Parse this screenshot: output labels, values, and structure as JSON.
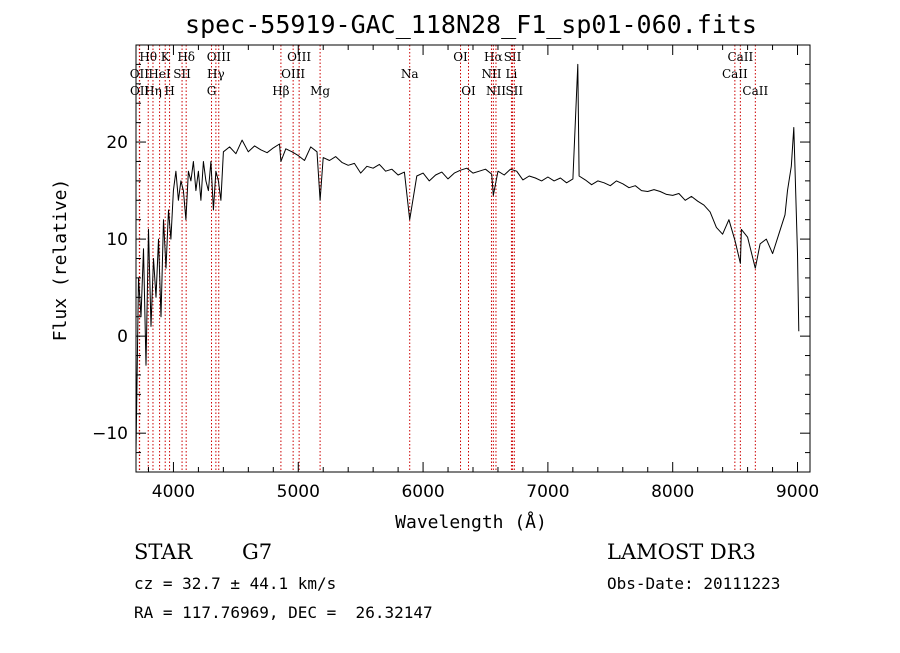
{
  "chart_data": {
    "type": "line",
    "title": "spec-55919-GAC_118N28_F1_sp01-060.fits",
    "xlabel": "Wavelength (Å)",
    "ylabel": "Flux (relative)",
    "xlim": [
      3700,
      9100
    ],
    "ylim": [
      -14,
      30
    ],
    "xticks": [
      4000,
      5000,
      6000,
      7000,
      8000,
      9000
    ],
    "yticks": [
      -10,
      0,
      10,
      20
    ],
    "grid": false,
    "series": [
      {
        "x": [
          3700,
          3720,
          3740,
          3760,
          3780,
          3800,
          3820,
          3840,
          3860,
          3880,
          3900,
          3920,
          3940,
          3960,
          3980,
          4000,
          4020,
          4040,
          4060,
          4080,
          4100,
          4120,
          4140,
          4160,
          4180,
          4200,
          4220,
          4240,
          4260,
          4280,
          4300,
          4320,
          4340,
          4360,
          4380,
          4400,
          4450,
          4500,
          4550,
          4600,
          4650,
          4700,
          4750,
          4800,
          4850,
          4861,
          4900,
          4950,
          5000,
          5050,
          5100,
          5150,
          5175,
          5200,
          5250,
          5300,
          5350,
          5400,
          5450,
          5500,
          5550,
          5600,
          5650,
          5700,
          5750,
          5800,
          5850,
          5893,
          5950,
          6000,
          6050,
          6100,
          6150,
          6200,
          6250,
          6300,
          6350,
          6400,
          6450,
          6500,
          6550,
          6563,
          6600,
          6650,
          6700,
          6750,
          6800,
          6850,
          6900,
          6950,
          7000,
          7050,
          7100,
          7150,
          7200,
          7240,
          7250,
          7300,
          7350,
          7400,
          7450,
          7500,
          7550,
          7600,
          7650,
          7700,
          7750,
          7800,
          7850,
          7900,
          7950,
          8000,
          8050,
          8100,
          8150,
          8200,
          8250,
          8300,
          8350,
          8400,
          8450,
          8500,
          8542,
          8550,
          8600,
          8662,
          8700,
          8750,
          8800,
          8850,
          8900,
          8920,
          8950,
          8970,
          9000,
          9010
        ],
        "y": [
          -12,
          6,
          2,
          9,
          -3,
          11,
          1,
          8,
          4,
          10,
          2,
          12,
          7,
          13,
          10,
          15,
          17,
          14,
          16,
          15,
          12,
          17,
          16,
          18,
          15,
          17,
          14,
          18,
          16,
          15,
          18,
          13,
          17,
          16,
          14,
          19,
          19.5,
          18.8,
          20.2,
          19,
          19.6,
          19.2,
          18.9,
          19.4,
          19.8,
          18,
          19.3,
          19,
          18.6,
          18.1,
          19.5,
          19,
          14,
          18.4,
          18.1,
          18.5,
          17.9,
          17.6,
          17.8,
          16.8,
          17.5,
          17.3,
          17.7,
          17.0,
          17.2,
          16.6,
          16.9,
          12,
          16.5,
          16.8,
          16.0,
          16.6,
          16.9,
          16.2,
          16.8,
          17.1,
          17.3,
          16.8,
          17.0,
          17.2,
          16.7,
          14.5,
          17.0,
          16.6,
          17.2,
          17.0,
          16.1,
          16.5,
          16.3,
          16.0,
          16.4,
          16.0,
          16.3,
          15.8,
          16.2,
          28,
          16.5,
          16.1,
          15.6,
          16.0,
          15.8,
          15.5,
          16.0,
          15.7,
          15.3,
          15.5,
          15.0,
          14.9,
          15.1,
          14.9,
          14.6,
          14.5,
          14.7,
          14.0,
          14.4,
          13.9,
          13.5,
          12.8,
          11.2,
          10.5,
          12.0,
          9.8,
          7.5,
          11.0,
          10.2,
          7,
          9.5,
          10.0,
          8.5,
          10.5,
          12.5,
          15.0,
          17.5,
          21.5,
          8.5,
          0.5
        ]
      }
    ],
    "lines": [
      {
        "label": "Hθ",
        "x": 3798,
        "row": 0
      },
      {
        "label": "OII",
        "x": 3727,
        "row": 1
      },
      {
        "label": "OII",
        "x": 3729,
        "row": 2
      },
      {
        "label": "Hη",
        "x": 3836,
        "row": 2
      },
      {
        "label": "HeI",
        "x": 3889,
        "row": 1
      },
      {
        "label": "K",
        "x": 3934,
        "row": 0
      },
      {
        "label": "H",
        "x": 3969,
        "row": 2
      },
      {
        "label": "SII",
        "x": 4069,
        "row": 1
      },
      {
        "label": "Hδ",
        "x": 4102,
        "row": 0
      },
      {
        "label": "OIII",
        "x": 4363,
        "row": 0
      },
      {
        "label": "Hγ",
        "x": 4340,
        "row": 1
      },
      {
        "label": "G",
        "x": 4305,
        "row": 2
      },
      {
        "label": "Hβ",
        "x": 4861,
        "row": 2
      },
      {
        "label": "OIII",
        "x": 5007,
        "row": 0
      },
      {
        "label": "OIII",
        "x": 4959,
        "row": 1
      },
      {
        "label": "Mg",
        "x": 5175,
        "row": 2
      },
      {
        "label": "Na",
        "x": 5893,
        "row": 1
      },
      {
        "label": "OI",
        "x": 6300,
        "row": 0
      },
      {
        "label": "OI",
        "x": 6364,
        "row": 2
      },
      {
        "label": "Hα",
        "x": 6563,
        "row": 0
      },
      {
        "label": "NII",
        "x": 6548,
        "row": 1
      },
      {
        "label": "NII",
        "x": 6584,
        "row": 2
      },
      {
        "label": "SII",
        "x": 6717,
        "row": 0
      },
      {
        "label": "Li",
        "x": 6708,
        "row": 1
      },
      {
        "label": "SII",
        "x": 6731,
        "row": 2
      },
      {
        "label": "CaII",
        "x": 8542,
        "row": 0
      },
      {
        "label": "CaII",
        "x": 8498,
        "row": 1
      },
      {
        "label": "CaII",
        "x": 8662,
        "row": 2
      }
    ]
  },
  "footer": {
    "class": "STAR",
    "subclass": "G7",
    "survey": "LAMOST DR3",
    "cz": "cz = 32.7 ± 44.1 km/s",
    "obs_date": "Obs-Date: 20111223",
    "coords": "RA = 117.76969, DEC =  26.32147"
  },
  "colors": {
    "line_markers": "#cc0000",
    "spectrum": "#000000"
  }
}
